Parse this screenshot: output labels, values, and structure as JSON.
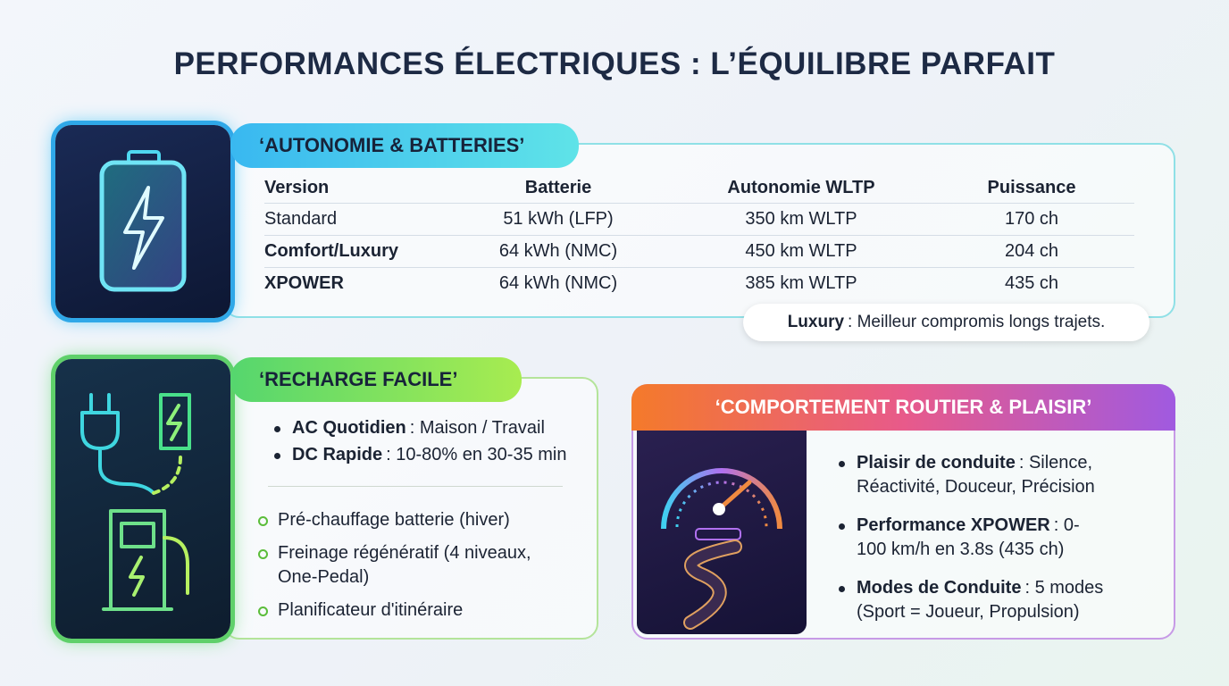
{
  "title": "PERFORMANCES ÉLECTRIQUES : L’ÉQUILIBRE PARFAIT",
  "battery": {
    "heading": "‘AUTONOMIE & BATTERIES’",
    "table": {
      "columns": [
        "Version",
        "Batterie",
        "Autonomie WLTP",
        "Puissance"
      ],
      "rows": [
        [
          "Standard",
          "51 kWh (LFP)",
          "350 km WLTP",
          "170 ch"
        ],
        [
          "Comfort/Luxury",
          "64 kWh (NMC)",
          "450 km WLTP",
          "204 ch"
        ],
        [
          "XPOWER",
          "64 kWh (NMC)",
          "385 km WLTP",
          "435 ch"
        ]
      ]
    },
    "note": {
      "bold": "Luxury",
      "text": ": Meilleur compromis longs trajets."
    }
  },
  "charging": {
    "heading": "‘RECHARGE FACILE’",
    "bullets": [
      {
        "bold": "AC Quotidien",
        "text": ": Maison / Travail"
      },
      {
        "bold": "DC Rapide",
        "text": ": 10-80% en 30-35 min"
      }
    ],
    "items": [
      "Pré-chauffage batterie (hiver)",
      "Freinage régénératif (4 niveaux, One-Pedal)",
      "Planificateur d'itinéraire"
    ]
  },
  "driving": {
    "heading": "‘COMPORTEMENT ROUTIER & PLAISIR’",
    "bullets": [
      {
        "bold": "Plaisir de conduite",
        "text": ": Silence, Réactivité, Douceur, Précision"
      },
      {
        "bold": "Performance XPOWER",
        "text": ": 0-100 km/h en 3.8s (435 ch)"
      },
      {
        "bold": "Modes de Conduite",
        "text": ": 5 modes (Sport = Joueur, Propulsion)"
      }
    ]
  }
}
